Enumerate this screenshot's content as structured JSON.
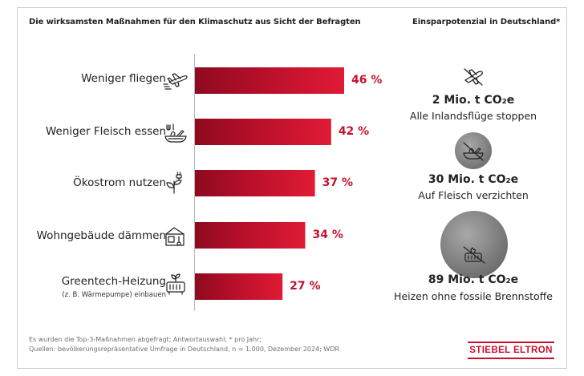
{
  "header": {
    "left_title": "Die wirksamsten Maßnahmen für den Klimaschutz aus Sicht der Befragten",
    "right_title": "Einsparpotenzial in Deutschland*"
  },
  "chart_data": [
    {
      "type": "bar",
      "orientation": "horizontal",
      "title": "Die wirksamsten Maßnahmen für den Klimaschutz aus Sicht der Befragten",
      "categories": [
        "Weniger fliegen",
        "Weniger Fleisch essen",
        "Ökostrom nutzen",
        "Wohngebäude dämmen",
        "Greentech-Heizung"
      ],
      "category_sublabels": [
        "",
        "",
        "",
        "",
        "(z. B. Wärmepumpe) einbauen"
      ],
      "values": [
        46,
        42,
        37,
        34,
        27
      ],
      "value_labels": [
        "46 %",
        "42 %",
        "37 %",
        "34 %",
        "27 %"
      ],
      "unit": "%",
      "xlim": [
        0,
        50
      ],
      "grid": false,
      "bar_color": "#c8102e",
      "icons": [
        "airplane-icon",
        "food-bowl-icon",
        "plant-plug-icon",
        "house-thermometer-icon",
        "heat-pump-icon"
      ]
    },
    {
      "type": "bubble",
      "title": "Einsparpotenzial in Deutschland*",
      "unit": "Mio. t CO₂e",
      "items": [
        {
          "value": 2,
          "value_label": "2 Mio. t CO₂e",
          "label": "Alle Inlandsflüge stoppen",
          "icon": "no-flight-icon"
        },
        {
          "value": 30,
          "value_label": "30 Mio. t CO₂e",
          "label": "Auf Fleisch verzichten",
          "icon": "no-meat-icon"
        },
        {
          "value": 89,
          "value_label": "89 Mio. t CO₂e",
          "label": "Heizen ohne fossile Brennstoffe",
          "icon": "no-fossil-heating-icon"
        }
      ],
      "circle_color": "#8a8a8a"
    }
  ],
  "footnote": {
    "line1": "Es wurden die Top-3-Maßnahmen abgefragt; Antwortauswahl; * pro Jahr;",
    "line2": "Quellen: bevölkerungsrepräsentative Umfrage in Deutschland, n = 1.000, Dezember 2024; WDR"
  },
  "brand": {
    "logo_text": "STIEBEL ELTRON",
    "accent_color": "#c8102e"
  }
}
